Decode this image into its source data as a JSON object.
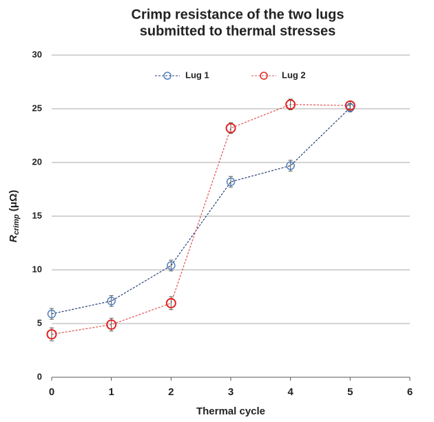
{
  "chart_data": {
    "type": "line",
    "title": [
      "Crimp resistance of  the two lugs",
      "submitted to thermal stresses"
    ],
    "xlabel": "Thermal cycle",
    "ylabel": {
      "main": "R",
      "sub": "crimp",
      "unit": " (μΩ)"
    },
    "x": [
      0,
      1,
      2,
      3,
      4,
      5
    ],
    "series": [
      {
        "name": "Lug 1",
        "color": "#4f7fbf",
        "line_color": "#1f3b73",
        "values": [
          5.9,
          7.1,
          10.4,
          18.2,
          19.7,
          25.1
        ],
        "errors": [
          0.5,
          0.5,
          0.5,
          0.5,
          0.5,
          0.4
        ]
      },
      {
        "name": "Lug 2",
        "color": "#e02020",
        "line_color": "#e05050",
        "values": [
          4.0,
          4.9,
          6.9,
          23.2,
          25.4,
          25.3
        ],
        "errors": [
          0.6,
          0.6,
          0.6,
          0.5,
          0.5,
          0.4
        ]
      }
    ],
    "xlim": [
      0,
      6
    ],
    "xticks": [
      0,
      1,
      2,
      3,
      4,
      5,
      6
    ],
    "ylim": [
      0,
      30
    ],
    "yticks": [
      0,
      5,
      10,
      15,
      20,
      25,
      30
    ],
    "grid": true,
    "legend": "top"
  }
}
